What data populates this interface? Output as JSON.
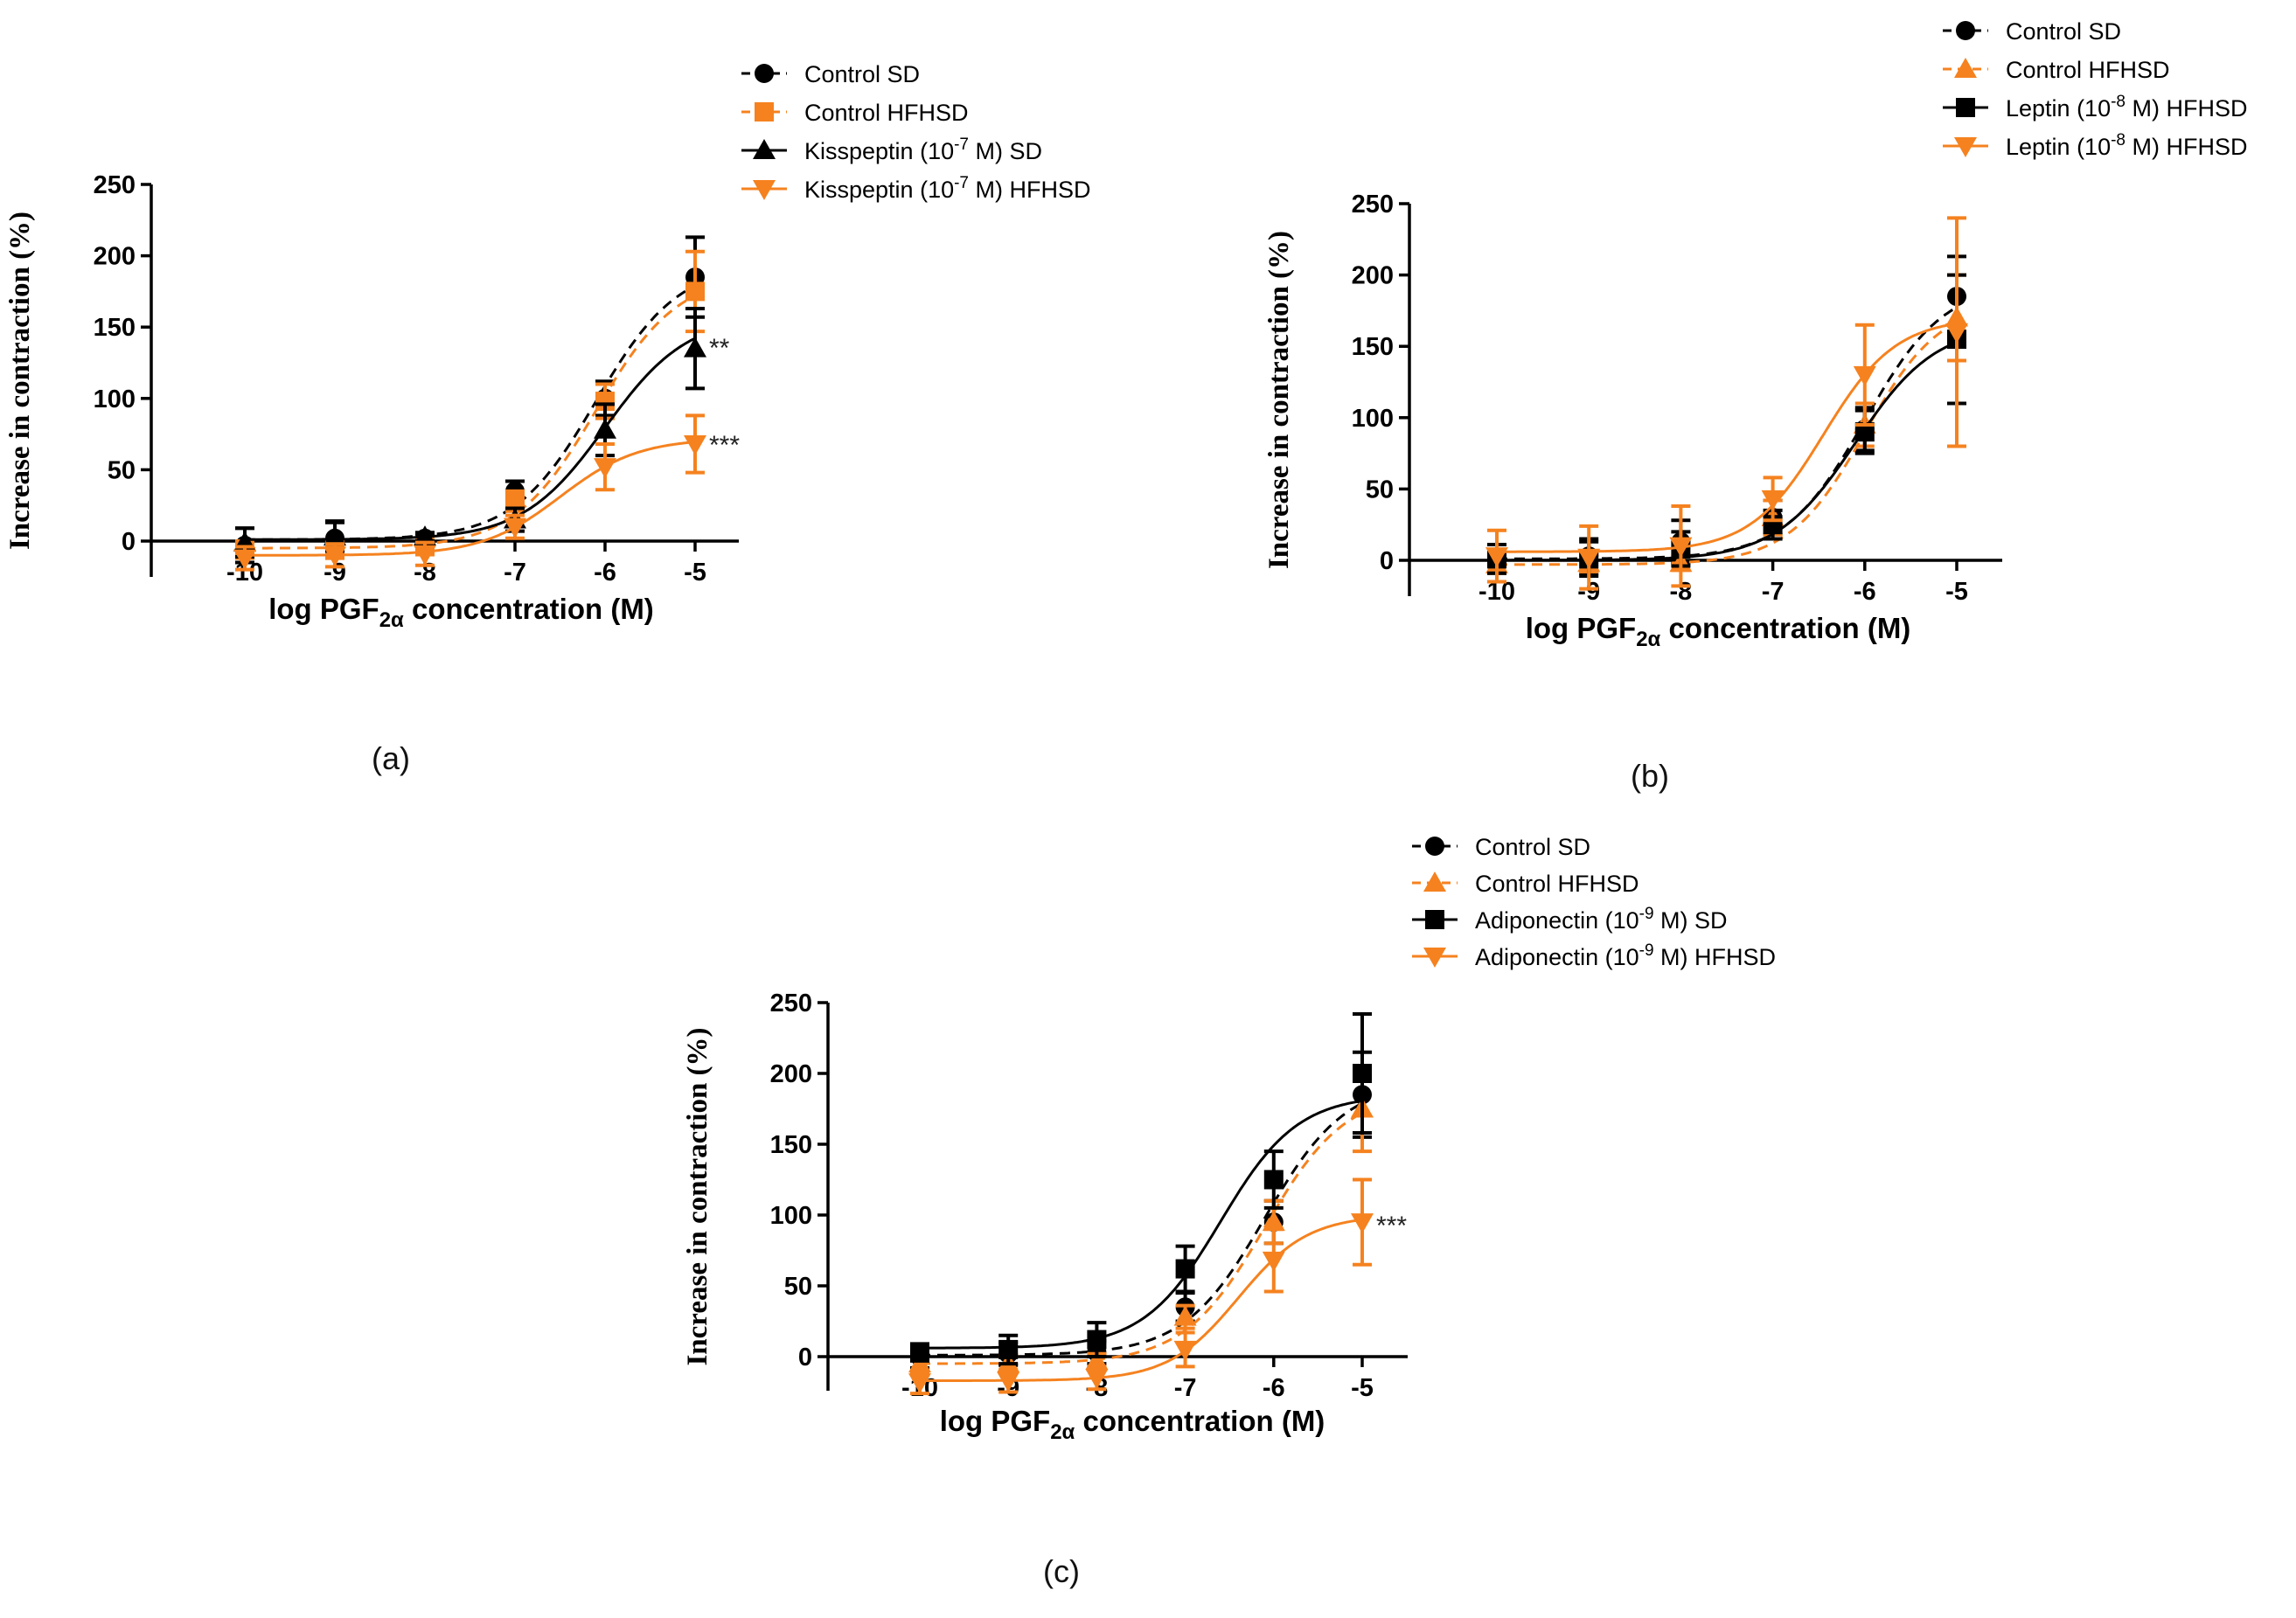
{
  "colors": {
    "black": "#000000",
    "orange": "#F5821F"
  },
  "chart_data": [
    {
      "type": "line",
      "panel_label": "(a)",
      "xlabel_prefix": "log PGF",
      "xlabel_sub": "2α",
      "xlabel_suffix": " concentration (M)",
      "ylabel": "Increase in contraction (%)",
      "x": [
        -10,
        -9,
        -8,
        -7,
        -6,
        -5
      ],
      "xticks": [
        "-10",
        "-9",
        "-8",
        "-7",
        "-6",
        "-5"
      ],
      "yticks": [
        "0",
        "50",
        "100",
        "150",
        "200",
        "250"
      ],
      "ylim": [
        -25,
        250
      ],
      "series": [
        {
          "name": "Control SD",
          "label_base": "Control SD",
          "marker": "circle",
          "color": "black",
          "dash": true,
          "values": [
            -3,
            2,
            2,
            35,
            100,
            185
          ],
          "errors": [
            12,
            12,
            3,
            7,
            12,
            28
          ],
          "fit": {
            "bottom": 1,
            "top": 195,
            "ec50": -6.1,
            "hill": 0.95
          }
        },
        {
          "name": "Control HFHSD",
          "label_base": "Control HFHSD",
          "marker": "square",
          "color": "orange",
          "dash": true,
          "values": [
            -6,
            -6,
            -4,
            28,
            98,
            175
          ],
          "errors": [
            6,
            6,
            5,
            7,
            12,
            28
          ],
          "fit": {
            "bottom": -5,
            "top": 188,
            "ec50": -6.1,
            "hill": 0.95
          }
        },
        {
          "name": "Kisspeptin (10-7 M) SD",
          "label_base": "Kisspeptin (10",
          "label_sup": "-7",
          "label_tail": " M) SD",
          "marker": "triangle-up",
          "color": "black",
          "dash": false,
          "values": [
            -1,
            3,
            3,
            15,
            78,
            135
          ],
          "errors": [
            10,
            10,
            3,
            8,
            18,
            28
          ],
          "fit": {
            "bottom": 1,
            "top": 158,
            "ec50": -6.0,
            "hill": 0.95
          }
        },
        {
          "name": "Kisspeptin (10-7 M) HFHSD",
          "label_base": "Kisspeptin (10",
          "label_sup": "-7",
          "label_tail": " M) HFHSD",
          "marker": "triangle-down",
          "color": "orange",
          "dash": false,
          "values": [
            -12,
            -10,
            -9,
            10,
            52,
            68
          ],
          "errors": [
            8,
            8,
            8,
            8,
            16,
            20
          ],
          "fit": {
            "bottom": -10,
            "top": 72,
            "ec50": -6.5,
            "hill": 1.0
          }
        }
      ],
      "annotations": [
        {
          "text": "**",
          "x": -5,
          "y": 138
        },
        {
          "text": "***",
          "x": -5,
          "y": 70
        }
      ]
    },
    {
      "type": "line",
      "panel_label": "(b)",
      "xlabel_prefix": "log PGF",
      "xlabel_sub": "2α",
      "xlabel_suffix": " concentration (M)",
      "ylabel": "Increase in contraction (%)",
      "x": [
        -10,
        -9,
        -8,
        -7,
        -6,
        -5
      ],
      "xticks": [
        "-10",
        "-9",
        "-8",
        "-7",
        "-6",
        "-5"
      ],
      "yticks": [
        "0",
        "50",
        "100",
        "150",
        "200",
        "250"
      ],
      "ylim": [
        -25,
        250
      ],
      "series": [
        {
          "name": "Control SD",
          "label_base": "Control SD",
          "marker": "circle",
          "color": "black",
          "dash": true,
          "values": [
            1,
            3,
            13,
            30,
            92,
            185
          ],
          "errors": [
            10,
            12,
            15,
            12,
            15,
            28
          ],
          "fit": {
            "bottom": 1,
            "top": 195,
            "ec50": -6.0,
            "hill": 1.0
          }
        },
        {
          "name": "Control HFHSD",
          "label_base": "Control HFHSD",
          "marker": "triangle-up",
          "color": "orange",
          "dash": true,
          "values": [
            -3,
            -2,
            -2,
            30,
            95,
            170
          ],
          "errors": [
            6,
            6,
            5,
            12,
            15,
            30
          ],
          "fit": {
            "bottom": -3,
            "top": 182,
            "ec50": -6.0,
            "hill": 1.05
          }
        },
        {
          "name": "Leptin (10-8 M) HFHSD",
          "label_base": "Leptin (10",
          "label_sup": "-8",
          "label_tail": " M) HFHSD",
          "marker": "square",
          "color": "black",
          "dash": false,
          "values": [
            1,
            1,
            8,
            25,
            90,
            155
          ],
          "errors": [
            10,
            12,
            12,
            10,
            15,
            45
          ],
          "fit": {
            "bottom": 0,
            "top": 165,
            "ec50": -6.1,
            "hill": 1.0
          }
        },
        {
          "name": "Leptin (10-8 M) HFHSD",
          "label_base": "Leptin (10",
          "label_sup": "-8",
          "label_tail": " M) HFHSD",
          "marker": "triangle-down",
          "color": "orange",
          "dash": false,
          "values": [
            3,
            2,
            10,
            43,
            130,
            160
          ],
          "errors": [
            18,
            22,
            28,
            15,
            35,
            80
          ],
          "fit": {
            "bottom": 6,
            "top": 170,
            "ec50": -6.45,
            "hill": 1.1
          }
        }
      ],
      "annotations": []
    },
    {
      "type": "line",
      "panel_label": "(c)",
      "xlabel_prefix": "log PGF",
      "xlabel_sub": "2α",
      "xlabel_suffix": " concentration (M)",
      "ylabel": "Increase in contraction (%)",
      "x": [
        -10,
        -9,
        -8,
        -7,
        -6,
        -5
      ],
      "xticks": [
        "-10",
        "-9",
        "-8",
        "-7",
        "-6",
        "-5"
      ],
      "yticks": [
        "0",
        "50",
        "100",
        "150",
        "200",
        "250"
      ],
      "ylim": [
        -25,
        250
      ],
      "series": [
        {
          "name": "Control SD",
          "label_base": "Control SD",
          "marker": "circle",
          "color": "black",
          "dash": true,
          "values": [
            0,
            2,
            3,
            35,
            95,
            185
          ],
          "errors": [
            8,
            8,
            8,
            10,
            15,
            30
          ],
          "fit": {
            "bottom": 1,
            "top": 195,
            "ec50": -6.1,
            "hill": 0.95
          }
        },
        {
          "name": "Control HFHSD",
          "label_base": "Control HFHSD",
          "marker": "triangle-up",
          "color": "orange",
          "dash": true,
          "values": [
            -5,
            -5,
            -3,
            28,
            95,
            175
          ],
          "errors": [
            6,
            6,
            5,
            8,
            15,
            30
          ],
          "fit": {
            "bottom": -5,
            "top": 188,
            "ec50": -6.1,
            "hill": 0.95
          }
        },
        {
          "name": "Adiponectin (10-9 M) SD",
          "label_base": "Adiponectin (10",
          "label_sup": "-9",
          "label_tail": " M) SD",
          "marker": "square",
          "color": "black",
          "dash": false,
          "values": [
            3,
            5,
            12,
            62,
            125,
            200
          ],
          "errors": [
            6,
            10,
            12,
            16,
            20,
            42
          ],
          "fit": {
            "bottom": 6,
            "top": 185,
            "ec50": -6.6,
            "hill": 1.0
          }
        },
        {
          "name": "Adiponectin (10-9 M) HFHSD",
          "label_base": "Adiponectin (10",
          "label_sup": "-9",
          "label_tail": " M) HFHSD",
          "marker": "triangle-down",
          "color": "orange",
          "dash": false,
          "values": [
            -18,
            -17,
            -15,
            5,
            68,
            95
          ],
          "errors": [
            8,
            8,
            8,
            12,
            22,
            30
          ],
          "fit": {
            "bottom": -17,
            "top": 100,
            "ec50": -6.4,
            "hill": 1.1
          }
        }
      ],
      "annotations": [
        {
          "text": "***",
          "x": -5,
          "y": 95
        }
      ]
    }
  ]
}
